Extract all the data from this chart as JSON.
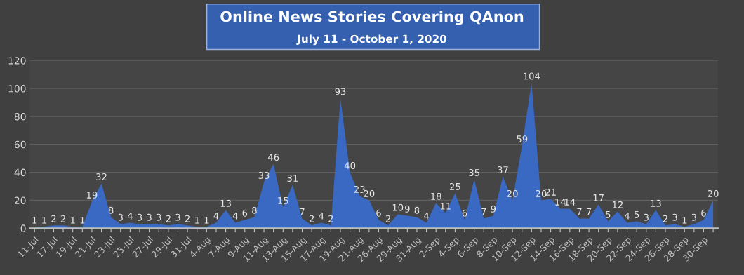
{
  "chart_data": {
    "type": "area",
    "title": "Online News Stories Covering QAnon",
    "subtitle": "July 11 - October 1, 2020",
    "categories": [
      "11-Jul",
      null,
      "17-Jul",
      null,
      "19-Jul",
      null,
      "21-Jul",
      null,
      "23-Jul",
      null,
      "25-Jul",
      null,
      "27-Jul",
      null,
      "29-Jul",
      null,
      "31-Jul",
      null,
      "4-Aug",
      null,
      "7-Aug",
      null,
      "9-Aug",
      null,
      "11-Aug",
      null,
      "13-Aug",
      null,
      "15-Aug",
      null,
      "17-Aug",
      null,
      "19-Aug",
      null,
      "21-Aug",
      null,
      "26-Aug",
      null,
      "29-Aug",
      null,
      "31-Aug",
      null,
      "2-Sep",
      null,
      "4-Sep",
      null,
      "6-Sep",
      null,
      "8-Sep",
      null,
      "10-Sep",
      null,
      "12-Sep",
      null,
      "14-Sep",
      null,
      "16-Sep",
      null,
      "18-Sep",
      null,
      "20-Sep",
      null,
      "22-Sep",
      null,
      "24-Sep",
      null,
      "26-Sep",
      null,
      "28-Sep",
      null,
      "30-Sep",
      null
    ],
    "series": [
      {
        "color": "#3a69c4",
        "values": [
          1,
          1,
          2,
          2,
          1,
          1,
          19,
          32,
          8,
          3,
          4,
          3,
          3,
          3,
          2,
          3,
          2,
          1,
          1,
          4,
          13,
          4,
          6,
          8,
          33,
          46,
          15,
          31,
          7,
          2,
          4,
          2,
          93,
          40,
          23,
          20,
          6,
          2,
          10,
          9,
          8,
          4,
          18,
          11,
          25,
          6,
          35,
          7,
          9,
          37,
          20,
          59,
          104,
          20,
          21,
          14,
          14,
          7,
          7,
          17,
          5,
          12,
          4,
          5,
          3,
          13,
          2,
          3,
          1,
          3,
          6,
          20
        ]
      }
    ],
    "ylim": [
      0,
      120
    ],
    "yticks": [
      0,
      20,
      40,
      60,
      80,
      100,
      120
    ],
    "grid": "y",
    "data_labels": true
  }
}
